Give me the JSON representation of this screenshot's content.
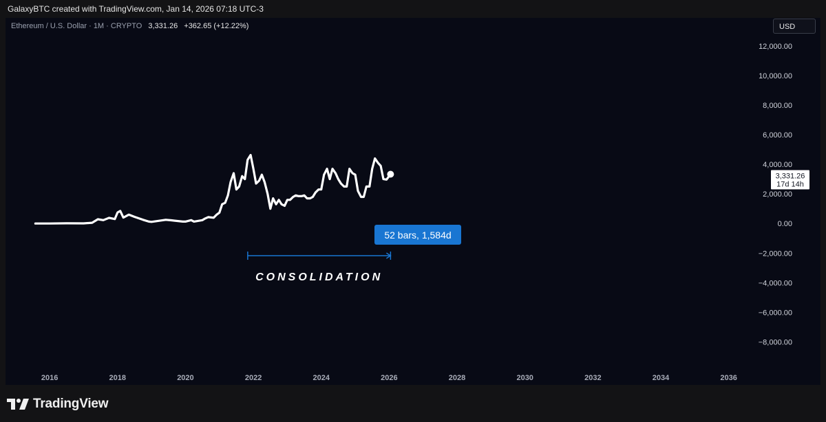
{
  "header": {
    "created_text": "GalaxyBTC created with TradingView.com, Jan 14, 2026 07:18 UTC-3"
  },
  "legend": {
    "symbol": "Ethereum / U.S. Dollar · 1M · CRYPTO",
    "last": "3,331.26",
    "change": "+362.65 (+12.22%)"
  },
  "currency_label": "USD",
  "price_tag": {
    "value": "3,331.26",
    "countdown": "17d 14h"
  },
  "measure": {
    "label": "52 bars, 1,584d",
    "annotation": "CONSOLIDATION",
    "from": 2021.833,
    "to": 2026.04
  },
  "footer": {
    "brand": "TradingView"
  },
  "colors": {
    "background": "#080a15",
    "line": "#ffffff",
    "measure": "#1976d2",
    "text": "#d1d4dc"
  },
  "chart_data": {
    "type": "line",
    "x_ticks": [
      "2016",
      "2018",
      "2020",
      "2022",
      "2024",
      "2026",
      "2028",
      "2030",
      "2032",
      "2034",
      "2036"
    ],
    "y_ticks": [
      "12,000.00",
      "10,000.00",
      "8,000.00",
      "6,000.00",
      "4,000.00",
      "2,000.00",
      "0.00",
      "−2,000.00",
      "−4,000.00",
      "−6,000.00",
      "−8,000.00"
    ],
    "xlim": [
      2014.7,
      2037.0
    ],
    "ylim": [
      -9700,
      13900
    ],
    "grid": false,
    "series": [
      {
        "points": [
          [
            2015.58,
            1
          ],
          [
            2016.0,
            1
          ],
          [
            2016.5,
            12
          ],
          [
            2017.0,
            10
          ],
          [
            2017.25,
            50
          ],
          [
            2017.42,
            290
          ],
          [
            2017.58,
            230
          ],
          [
            2017.75,
            380
          ],
          [
            2017.92,
            300
          ],
          [
            2018.0,
            750
          ],
          [
            2018.08,
            850
          ],
          [
            2018.17,
            400
          ],
          [
            2018.33,
            600
          ],
          [
            2018.5,
            450
          ],
          [
            2018.75,
            250
          ],
          [
            2018.92,
            130
          ],
          [
            2019.0,
            110
          ],
          [
            2019.42,
            250
          ],
          [
            2019.58,
            220
          ],
          [
            2019.92,
            130
          ],
          [
            2020.0,
            130
          ],
          [
            2020.17,
            230
          ],
          [
            2020.25,
            130
          ],
          [
            2020.5,
            230
          ],
          [
            2020.58,
            340
          ],
          [
            2020.67,
            430
          ],
          [
            2020.83,
            390
          ],
          [
            2020.92,
            600
          ],
          [
            2021.0,
            740
          ],
          [
            2021.08,
            1300
          ],
          [
            2021.17,
            1400
          ],
          [
            2021.25,
            1900
          ],
          [
            2021.33,
            2800
          ],
          [
            2021.42,
            3400
          ],
          [
            2021.5,
            2300
          ],
          [
            2021.58,
            2500
          ],
          [
            2021.67,
            3200
          ],
          [
            2021.75,
            3000
          ],
          [
            2021.83,
            4300
          ],
          [
            2021.92,
            4630
          ],
          [
            2022.0,
            3700
          ],
          [
            2022.08,
            2700
          ],
          [
            2022.17,
            2900
          ],
          [
            2022.25,
            3300
          ],
          [
            2022.33,
            2800
          ],
          [
            2022.42,
            2000
          ],
          [
            2022.5,
            1000
          ],
          [
            2022.58,
            1700
          ],
          [
            2022.67,
            1300
          ],
          [
            2022.75,
            1600
          ],
          [
            2022.83,
            1300
          ],
          [
            2022.92,
            1200
          ],
          [
            2023.0,
            1600
          ],
          [
            2023.08,
            1600
          ],
          [
            2023.17,
            1800
          ],
          [
            2023.25,
            1900
          ],
          [
            2023.33,
            1850
          ],
          [
            2023.42,
            1850
          ],
          [
            2023.5,
            1900
          ],
          [
            2023.58,
            1700
          ],
          [
            2023.67,
            1700
          ],
          [
            2023.75,
            1800
          ],
          [
            2023.83,
            2100
          ],
          [
            2023.92,
            2300
          ],
          [
            2024.0,
            2300
          ],
          [
            2024.08,
            3300
          ],
          [
            2024.17,
            3700
          ],
          [
            2024.25,
            3000
          ],
          [
            2024.33,
            3700
          ],
          [
            2024.42,
            3400
          ],
          [
            2024.5,
            3000
          ],
          [
            2024.58,
            2700
          ],
          [
            2024.67,
            2500
          ],
          [
            2024.75,
            2500
          ],
          [
            2024.83,
            3700
          ],
          [
            2024.92,
            3400
          ],
          [
            2025.0,
            3300
          ],
          [
            2025.08,
            2200
          ],
          [
            2025.17,
            1800
          ],
          [
            2025.25,
            1800
          ],
          [
            2025.33,
            2500
          ],
          [
            2025.42,
            2500
          ],
          [
            2025.5,
            3700
          ],
          [
            2025.58,
            4400
          ],
          [
            2025.67,
            4100
          ],
          [
            2025.75,
            3900
          ],
          [
            2025.83,
            3000
          ],
          [
            2025.92,
            2970
          ],
          [
            2026.04,
            3331.26
          ]
        ]
      }
    ]
  }
}
